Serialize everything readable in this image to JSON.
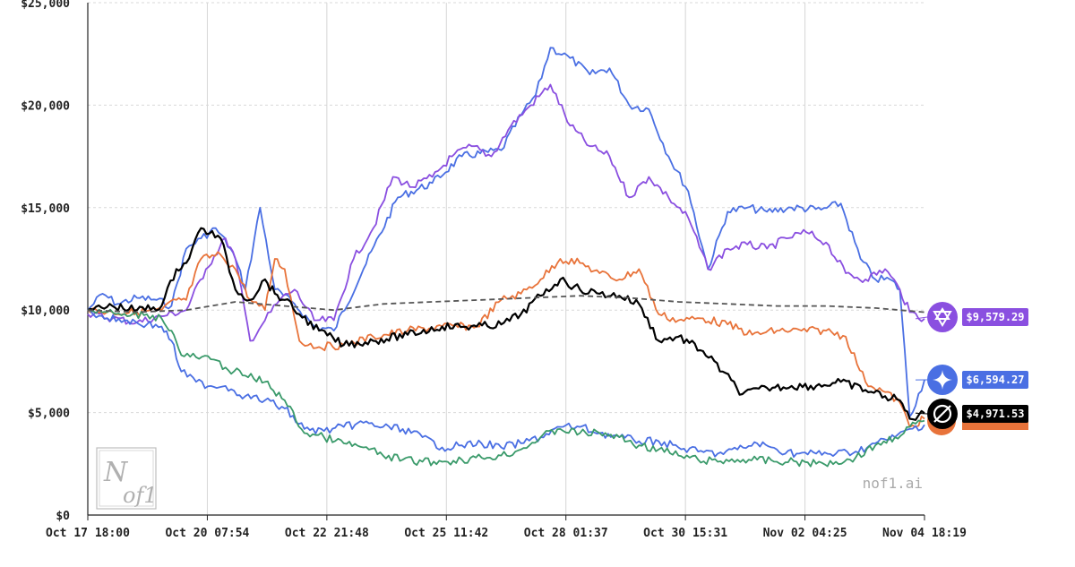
{
  "chart_data": {
    "type": "line",
    "x_ticks": [
      "Oct 17 18:00",
      "Oct 20 07:54",
      "Oct 22 21:48",
      "Oct 25 11:42",
      "Oct 28 01:37",
      "Oct 30 15:31",
      "Nov 02 04:25",
      "Nov 04 18:19"
    ],
    "y_ticks": [
      "$0",
      "$5,000",
      "$10,000",
      "$15,000",
      "$20,000",
      "$25,000"
    ],
    "ylim": [
      0,
      25000
    ],
    "grid": true,
    "baseline_value": 10000,
    "series": [
      {
        "color": "#4a6fe3",
        "end_label": "$6,594.27",
        "icon": "gemini-star-icon",
        "x_days": [
          0,
          0.3,
          0.6,
          1.0,
          1.4,
          1.7,
          2.0,
          2.3,
          2.6,
          2.9,
          3.0,
          3.2,
          3.5,
          3.8,
          4.2,
          4.6,
          5.0,
          5.6,
          6.3,
          7.0,
          7.6,
          8.4,
          8.8,
          9.1,
          9.4,
          9.8,
          10.2,
          10.6,
          11.0,
          11.4,
          11.8,
          12.2,
          12.6,
          13.0,
          13.4,
          13.8,
          14.3,
          14.9,
          15.3,
          15.7,
          16.0,
          16.3,
          16.5,
          16.7,
          17.0
        ],
        "values": [
          10000,
          10800,
          10300,
          10600,
          10500,
          10200,
          13000,
          13500,
          14000,
          13000,
          12500,
          11000,
          15000,
          11000,
          10300,
          9200,
          9000,
          12000,
          15500,
          16200,
          17500,
          17800,
          19500,
          20500,
          22800,
          22300,
          21500,
          21800,
          20000,
          19800,
          17500,
          15800,
          12000,
          14800,
          15000,
          14800,
          15000,
          14900,
          15200,
          12500,
          11500,
          11500,
          11000,
          4800,
          6594.27
        ]
      },
      {
        "color": "#8a4fe0",
        "end_label": "$9,579.29",
        "icon": "claude-asterisk-icon",
        "x_days": [
          0,
          0.5,
          1.0,
          1.5,
          2.0,
          2.4,
          2.8,
          3.0,
          3.3,
          3.6,
          3.9,
          4.2,
          4.6,
          5.0,
          5.4,
          5.8,
          6.2,
          6.6,
          7.0,
          7.4,
          7.8,
          8.2,
          8.6,
          9.0,
          9.4,
          9.8,
          10.2,
          10.6,
          11.0,
          11.4,
          11.8,
          12.2,
          12.6,
          13.0,
          13.4,
          13.8,
          14.2,
          14.6,
          15.0,
          15.4,
          15.8,
          16.2,
          16.5,
          16.7,
          17.0
        ],
        "values": [
          9800,
          9600,
          9400,
          9700,
          10000,
          12000,
          13500,
          12500,
          8500,
          9500,
          10500,
          11000,
          9500,
          9500,
          12500,
          14000,
          16500,
          16000,
          16500,
          17500,
          18000,
          17500,
          19000,
          20000,
          21000,
          19000,
          18000,
          17500,
          15500,
          16500,
          15500,
          14500,
          12000,
          13000,
          13200,
          13000,
          13500,
          13800,
          13300,
          11800,
          11500,
          12000,
          11000,
          9900,
          9579.29
        ]
      },
      {
        "color": "#e8733a",
        "end_label": "",
        "icon": "",
        "x_days": [
          0,
          0.5,
          1.0,
          1.5,
          1.8,
          2.0,
          2.3,
          2.7,
          3.0,
          3.3,
          3.6,
          3.8,
          4.0,
          4.3,
          4.7,
          5.2,
          5.8,
          6.5,
          7.2,
          7.9,
          8.4,
          8.8,
          9.2,
          9.6,
          10.0,
          10.4,
          10.8,
          11.2,
          11.6,
          12.0,
          12.5,
          13.0,
          13.5,
          14.0,
          14.5,
          15.0,
          15.4,
          15.8,
          16.2,
          16.5,
          16.7,
          17.0
        ],
        "values": [
          10000,
          9900,
          9900,
          10000,
          10500,
          10500,
          12500,
          12700,
          12000,
          10500,
          10000,
          12500,
          12000,
          8500,
          8200,
          8300,
          8700,
          9000,
          9200,
          9200,
          10500,
          10800,
          11500,
          12500,
          12300,
          11800,
          11500,
          12000,
          9800,
          9500,
          9600,
          9300,
          8800,
          9000,
          9000,
          9000,
          8700,
          6500,
          6000,
          5500,
          4300,
          4700
        ]
      },
      {
        "color": "#000000",
        "end_label": "$4,971.53",
        "icon": "openai-knot-icon",
        "x_days": [
          0,
          0.5,
          1.0,
          1.5,
          1.8,
          2.0,
          2.3,
          2.7,
          3.0,
          3.3,
          3.6,
          3.8,
          4.0,
          4.3,
          4.7,
          5.2,
          5.8,
          6.5,
          7.2,
          7.9,
          8.4,
          8.8,
          9.2,
          9.6,
          10.0,
          10.4,
          10.8,
          11.2,
          11.6,
          12.0,
          12.5,
          12.9,
          13.3,
          13.8,
          14.3,
          14.8,
          15.3,
          15.8,
          16.2,
          16.5,
          16.7,
          17.0
        ],
        "values": [
          10000,
          10200,
          10000,
          10200,
          12000,
          12300,
          14000,
          13500,
          11000,
          10500,
          11500,
          10800,
          10500,
          9800,
          9000,
          8300,
          8500,
          8800,
          9200,
          9200,
          9300,
          9800,
          10700,
          11500,
          11000,
          10800,
          10700,
          10300,
          8500,
          8700,
          8000,
          7000,
          5900,
          6200,
          6300,
          6300,
          6500,
          6100,
          5800,
          5600,
          4700,
          4971.53
        ]
      },
      {
        "color": "#4a6fe3",
        "end_label": "",
        "icon": "",
        "x_days": [
          0,
          0.4,
          0.8,
          1.2,
          1.5,
          1.7,
          1.9,
          2.2,
          2.5,
          2.8,
          3.2,
          3.6,
          4.0,
          4.4,
          4.8,
          5.2,
          5.6,
          6.0,
          6.4,
          6.8,
          7.2,
          7.6,
          8.0,
          8.4,
          8.8,
          9.2,
          9.6,
          10.0,
          10.4,
          10.8,
          11.2,
          11.6,
          12.0,
          12.4,
          12.8,
          13.2,
          13.6,
          14.0,
          14.4,
          14.8,
          15.2,
          15.6,
          16.0,
          16.4,
          16.7,
          17.0
        ],
        "values": [
          10000,
          9600,
          9500,
          9300,
          9200,
          8500,
          7000,
          6500,
          6300,
          6300,
          5800,
          5600,
          5200,
          4200,
          4100,
          4300,
          4500,
          4300,
          4200,
          3800,
          3300,
          3400,
          3500,
          3300,
          3500,
          3800,
          4300,
          4300,
          4000,
          3800,
          3600,
          3600,
          3300,
          3100,
          3000,
          3200,
          3500,
          3200,
          3000,
          3000,
          3000,
          3100,
          3500,
          3800,
          4200,
          4400
        ]
      },
      {
        "color": "#3a9a6a",
        "end_label": "",
        "icon": "",
        "x_days": [
          0,
          0.4,
          0.8,
          1.2,
          1.5,
          1.7,
          1.9,
          2.2,
          2.5,
          2.8,
          3.2,
          3.6,
          4.0,
          4.4,
          4.8,
          5.2,
          5.6,
          6.0,
          6.4,
          6.8,
          7.2,
          7.6,
          8.0,
          8.4,
          8.8,
          9.2,
          9.6,
          10.0,
          10.4,
          10.8,
          11.2,
          11.6,
          12.0,
          12.4,
          12.8,
          13.2,
          13.6,
          14.0,
          14.4,
          14.8,
          15.2,
          15.6,
          16.0,
          16.4,
          16.7,
          17.0
        ],
        "values": [
          10000,
          9900,
          9700,
          9800,
          9600,
          9000,
          7800,
          7700,
          7600,
          7200,
          6800,
          6500,
          5600,
          4000,
          3800,
          3500,
          3300,
          2900,
          2700,
          2600,
          2600,
          2700,
          2800,
          2900,
          3200,
          3800,
          4200,
          4000,
          4000,
          3800,
          3400,
          3200,
          2900,
          2700,
          2600,
          2700,
          2700,
          2600,
          2600,
          2500,
          2600,
          2800,
          3400,
          3800,
          4300,
          4600
        ]
      },
      {
        "color": "#555555",
        "end_label": "",
        "icon": "",
        "dashed": true,
        "x_days": [
          0,
          1,
          2,
          3,
          4,
          5,
          6,
          7,
          8,
          9,
          10,
          11,
          12,
          13,
          14,
          15,
          16,
          17
        ],
        "values": [
          10000,
          9900,
          10000,
          10400,
          10200,
          10000,
          10300,
          10400,
          10500,
          10600,
          10700,
          10600,
          10400,
          10300,
          10200,
          10200,
          10100,
          9900
        ]
      }
    ]
  },
  "watermark": "nof1.ai",
  "logo_text": "Nof1"
}
